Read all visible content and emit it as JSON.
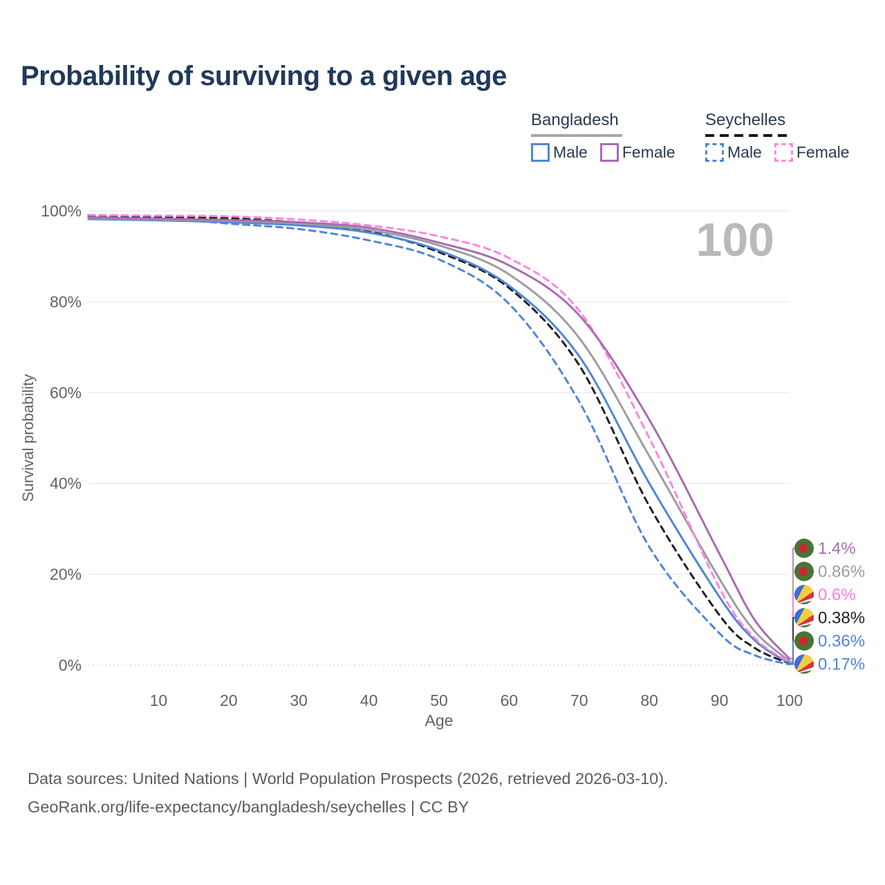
{
  "title": "Probability of surviving to a given age",
  "legend": {
    "groups": [
      {
        "name": "Bangladesh",
        "line_style": "solid",
        "underline_color": "#a7a7ac",
        "items": [
          {
            "label": "Male",
            "color": "#4f86d8"
          },
          {
            "label": "Female",
            "color": "#a76cb2"
          }
        ]
      },
      {
        "name": "Seychelles",
        "line_style": "dashed",
        "underline_color": "#151515",
        "items": [
          {
            "label": "Male",
            "color": "#4f86d8"
          },
          {
            "label": "Female",
            "color": "#ff85e0"
          }
        ]
      }
    ]
  },
  "chart_data": {
    "type": "line",
    "title": "Probability of surviving to a given age",
    "xlabel": "Age",
    "ylabel": "Survival probability",
    "xlim": [
      0,
      100
    ],
    "ylim": [
      0,
      100
    ],
    "x_ticks": [
      10,
      20,
      30,
      40,
      50,
      60,
      70,
      80,
      90,
      100
    ],
    "y_ticks": [
      0,
      20,
      40,
      60,
      80,
      100
    ],
    "y_tick_suffix": "%",
    "grid": "horizontal",
    "age_annotation": "100",
    "annotation_color": "#b9b9bd",
    "x": [
      0,
      10,
      20,
      30,
      40,
      50,
      60,
      70,
      80,
      90,
      95,
      100
    ],
    "series": [
      {
        "name": "Seychelles Male",
        "country": "seychelles",
        "sex": "male",
        "color": "#4f86d8",
        "dashed": true,
        "values": [
          98.8,
          98.4,
          97.2,
          96.0,
          93.5,
          89.3,
          79.5,
          58,
          26,
          7,
          2.2,
          0.17
        ],
        "end_label": "0.17%",
        "end_label_color": "#4f86d8"
      },
      {
        "name": "Seychelles",
        "country": "seychelles",
        "sex": "both",
        "color": "#1f1f1f",
        "dashed": true,
        "values": [
          99.0,
          98.7,
          98.4,
          97.4,
          95.5,
          90.9,
          83,
          66,
          35,
          11,
          3.8,
          0.38
        ],
        "end_label": "0.38%",
        "end_label_color": "#1f1f1f"
      },
      {
        "name": "Bangladesh Male",
        "country": "bangladesh",
        "sex": "male",
        "color": "#4f86d8",
        "dashed": false,
        "values": [
          98.2,
          97.9,
          97.5,
          96.8,
          95.2,
          91.3,
          83.5,
          68,
          40,
          15,
          5.5,
          0.36
        ],
        "end_label": "0.36%",
        "end_label_color": "#4f86d8"
      },
      {
        "name": "Bangladesh",
        "country": "bangladesh",
        "sex": "both",
        "color": "#9c9ca1",
        "dashed": false,
        "values": [
          98.4,
          98.1,
          97.8,
          97.2,
          95.8,
          92.4,
          86,
          72,
          46,
          19,
          7.5,
          0.86
        ],
        "end_label": "0.86%",
        "end_label_color": "#9c9ca1"
      },
      {
        "name": "Seychelles Female",
        "country": "seychelles",
        "sex": "female",
        "color": "#ff85e0",
        "dashed": true,
        "values": [
          99.1,
          98.95,
          98.8,
          98.1,
          96.8,
          94.4,
          89.6,
          78,
          50,
          17,
          6,
          0.6
        ],
        "end_label": "0.6%",
        "end_label_color": "#ff7ae0"
      },
      {
        "name": "Bangladesh Female",
        "country": "bangladesh",
        "sex": "female",
        "color": "#a76cb2",
        "dashed": false,
        "values": [
          98.6,
          98.3,
          98.0,
          97.5,
          96.3,
          93,
          88,
          77,
          54,
          24.5,
          10,
          1.4
        ],
        "end_label": "1.4%",
        "end_label_color": "#a76cb2"
      }
    ]
  },
  "footer": {
    "line1": "Data sources: United Nations | World Population Prospects (2026, retrieved 2026-03-10).",
    "line2": "GeoRank.org/life-expectancy/bangladesh/seychelles | CC BY"
  }
}
